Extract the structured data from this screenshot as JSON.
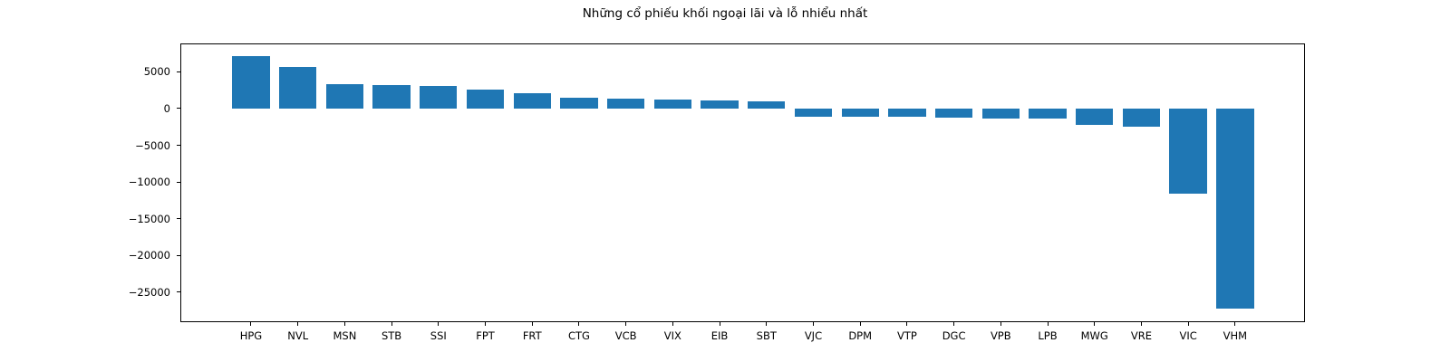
{
  "chart_data": {
    "type": "bar",
    "title": "Những cổ phiếu khối ngoại lãi và lỗ nhiểu nhất",
    "categories": [
      "HPG",
      "NVL",
      "MSN",
      "STB",
      "SSI",
      "FPT",
      "FRT",
      "CTG",
      "VCB",
      "VIX",
      "EIB",
      "SBT",
      "VJC",
      "DPM",
      "VTP",
      "DGC",
      "VPB",
      "LPB",
      "MWG",
      "VRE",
      "VIC",
      "VHM"
    ],
    "values": [
      7100,
      5670,
      3380,
      3260,
      3050,
      2550,
      2030,
      1490,
      1330,
      1200,
      1120,
      1000,
      -1100,
      -1100,
      -1170,
      -1250,
      -1380,
      -1380,
      -2200,
      -2480,
      -11570,
      -27300
    ],
    "xlabel": "",
    "ylabel": "",
    "yticks": [
      5000,
      0,
      -5000,
      -10000,
      -15000,
      -20000,
      -25000
    ],
    "ylim": [
      -29100,
      8870
    ],
    "grid": false,
    "legend": null,
    "bar_color": "#1f77b4",
    "axis_color": "#000000",
    "background_color": "#ffffff"
  }
}
